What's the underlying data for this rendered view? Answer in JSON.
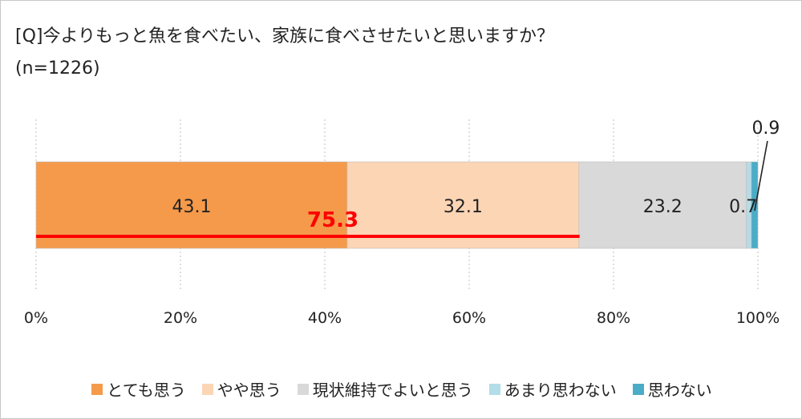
{
  "title": "[Q]今よりもっと魚を食べたい、家族に食べさせたいと思いますか？",
  "subtitle": "(n=1226)",
  "chart_data": {
    "type": "bar",
    "orientation": "horizontal",
    "stacked": true,
    "xlim": [
      0,
      100
    ],
    "ticks": [
      0,
      20,
      40,
      60,
      80,
      100
    ],
    "tick_labels": [
      "0%",
      "20%",
      "40%",
      "60%",
      "80%",
      "100%"
    ],
    "grid": "vertical-dotted",
    "legend_position": "bottom",
    "series": [
      {
        "name": "とても思う",
        "value": 43.1,
        "label": "43.1",
        "color": "#f59a4a"
      },
      {
        "name": "やや思う",
        "value": 32.1,
        "label": "32.1",
        "color": "#fcd5b5"
      },
      {
        "name": "現状維持でよいと思う",
        "value": 23.2,
        "label": "23.2",
        "color": "#d9d9d9"
      },
      {
        "name": "あまり思わない",
        "value": 0.7,
        "label": "0.7",
        "color": "#b3dde8"
      },
      {
        "name": "思わない",
        "value": 0.9,
        "label": "0.9",
        "color": "#4bacc6"
      }
    ],
    "annotation": {
      "text": "75.3",
      "from": 0,
      "to": 75.3,
      "color": "#ff0000"
    }
  }
}
